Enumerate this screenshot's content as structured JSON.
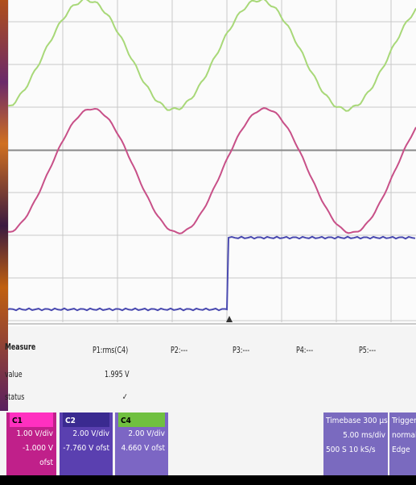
{
  "measure": {
    "header": "Measure",
    "row_labels": [
      "value",
      "status"
    ],
    "columns": [
      {
        "name": "P1:rms(C4)",
        "value": "1.995 V",
        "status": "✓"
      },
      {
        "name": "P2:---"
      },
      {
        "name": "P3:---"
      },
      {
        "name": "P4:---"
      },
      {
        "name": "P5:---"
      }
    ]
  },
  "channels": [
    {
      "label": "C1",
      "scale": "1.00 V/div",
      "offset": "-1.000 V ofst"
    },
    {
      "label": "C2",
      "scale": "2.00 V/div",
      "offset": "-7.760 V ofst"
    },
    {
      "label": "C4",
      "scale": "2.00 V/div",
      "offset": "4.660 V ofst"
    }
  ],
  "timebase": {
    "label": "Timebase",
    "delay": "300 µs",
    "rate": "5.00 ms/div",
    "samples": "500 S",
    "srate": "10 kS/s"
  },
  "trigger": {
    "label": "Trigger",
    "mode": "normal",
    "type": "Edge"
  }
}
